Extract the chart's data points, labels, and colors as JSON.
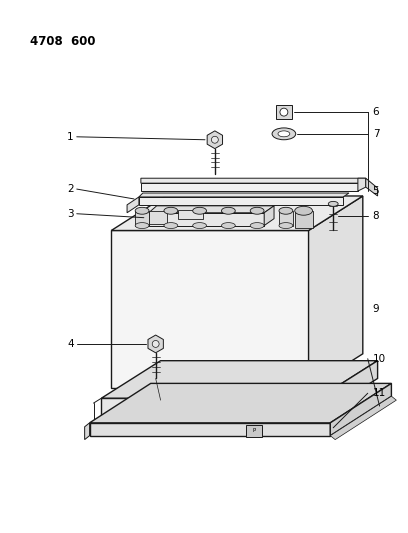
{
  "title": "4708  600",
  "background_color": "#ffffff",
  "line_color": "#1a1a1a",
  "label_color": "#000000",
  "fig_width": 4.08,
  "fig_height": 5.33,
  "dpi": 100
}
